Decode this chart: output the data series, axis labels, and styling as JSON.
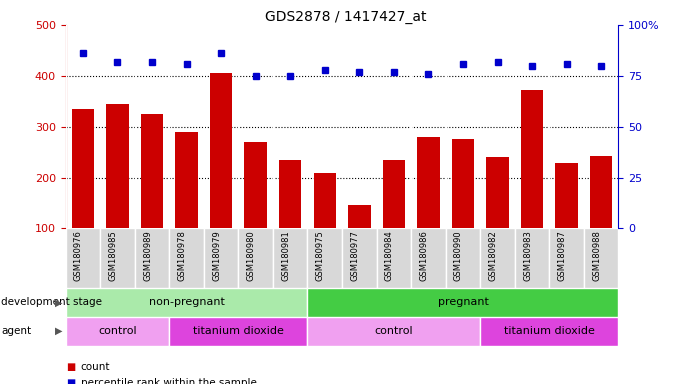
{
  "title": "GDS2878 / 1417427_at",
  "samples": [
    "GSM180976",
    "GSM180985",
    "GSM180989",
    "GSM180978",
    "GSM180979",
    "GSM180980",
    "GSM180981",
    "GSM180975",
    "GSM180977",
    "GSM180984",
    "GSM180986",
    "GSM180990",
    "GSM180982",
    "GSM180983",
    "GSM180987",
    "GSM180988"
  ],
  "counts": [
    335,
    345,
    325,
    290,
    405,
    270,
    235,
    210,
    147,
    235,
    280,
    275,
    240,
    372,
    228,
    243
  ],
  "percentiles": [
    86,
    82,
    82,
    81,
    86,
    75,
    75,
    78,
    77,
    77,
    76,
    81,
    82,
    80,
    81,
    80
  ],
  "bar_color": "#cc0000",
  "dot_color": "#0000cc",
  "left_axis_color": "#cc0000",
  "right_axis_color": "#0000cc",
  "ylim_left": [
    100,
    500
  ],
  "ylim_right": [
    0,
    100
  ],
  "left_ticks": [
    100,
    200,
    300,
    400,
    500
  ],
  "right_ticks": [
    0,
    25,
    50,
    75,
    100
  ],
  "grid_lines": [
    200,
    300,
    400
  ],
  "background_color": "#ffffff",
  "bar_bg_color": "#d8d8d8",
  "dev_stage_label": "development stage",
  "agent_label": "agent",
  "dev_stages": [
    {
      "label": "non-pregnant",
      "start": 0,
      "end": 7,
      "color": "#aaeaaa"
    },
    {
      "label": "pregnant",
      "start": 7,
      "end": 16,
      "color": "#44cc44"
    }
  ],
  "agents": [
    {
      "label": "control",
      "start": 0,
      "end": 3,
      "color": "#f0a0f0"
    },
    {
      "label": "titanium dioxide",
      "start": 3,
      "end": 7,
      "color": "#dd44dd"
    },
    {
      "label": "control",
      "start": 7,
      "end": 12,
      "color": "#f0a0f0"
    },
    {
      "label": "titanium dioxide",
      "start": 12,
      "end": 16,
      "color": "#dd44dd"
    }
  ],
  "legend_count_label": "count",
  "legend_pct_label": "percentile rank within the sample",
  "n_samples": 16
}
